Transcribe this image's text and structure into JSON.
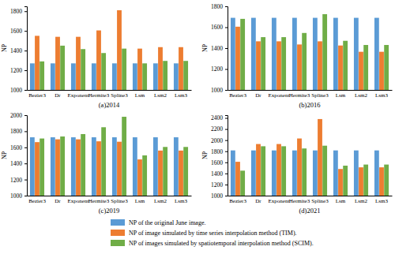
{
  "chart_data": [
    {
      "type": "bar",
      "title": "(a)2014",
      "y_label": "NP",
      "legend": "bottom",
      "grid": false,
      "categories": [
        "Bezier3",
        "Dr",
        "Exponent",
        "Hermite3",
        "Spline3",
        "Lsm",
        "Lsm2",
        "Lsm3"
      ],
      "series": [
        {
          "name": "NP of the original June image.",
          "color": "#5b9bd5",
          "values": [
            1270,
            1270,
            1270,
            1270,
            1270,
            1270,
            1270,
            1270
          ]
        },
        {
          "name": "NP of image simulated by time series interpolation method (TIM).",
          "color": "#ed7d31",
          "values": [
            1550,
            1540,
            1540,
            1605,
            1810,
            1420,
            1435,
            1435
          ]
        },
        {
          "name": "NP of images simulated by spatiotemporal interpolation method (SCIM).",
          "color": "#70ad47",
          "values": [
            1290,
            1450,
            1415,
            1375,
            1420,
            1270,
            1295,
            1295
          ]
        }
      ],
      "ylim": [
        1000,
        1850
      ],
      "yticks": [
        1000,
        1200,
        1400,
        1600,
        1800
      ]
    },
    {
      "type": "bar",
      "title": "(b)2016",
      "y_label": "NP",
      "grid": false,
      "categories": [
        "Bezier3",
        "Dr",
        "Exponent",
        "Hermite3",
        "Spline3",
        "Lsm",
        "Lsm2",
        "Lsm3"
      ],
      "series": [
        {
          "color": "#5b9bd5",
          "values": [
            1690,
            1690,
            1690,
            1690,
            1690,
            1690,
            1690,
            1690
          ]
        },
        {
          "color": "#ed7d31",
          "values": [
            1605,
            1465,
            1465,
            1435,
            1465,
            1425,
            1365,
            1365
          ]
        },
        {
          "color": "#70ad47",
          "values": [
            1680,
            1505,
            1505,
            1545,
            1725,
            1470,
            1430,
            1430
          ]
        }
      ],
      "ylim": [
        1000,
        1800
      ],
      "yticks": [
        1000,
        1200,
        1400,
        1600,
        1800
      ]
    },
    {
      "type": "bar",
      "title": "(c)2019",
      "y_label": "NP",
      "grid": false,
      "categories": [
        "Bezier3",
        "Dr",
        "Exponent",
        "Hermite3",
        "Spline3",
        "Lsm",
        "Lsm2",
        "Lsm3"
      ],
      "series": [
        {
          "color": "#5b9bd5",
          "values": [
            1725,
            1725,
            1725,
            1725,
            1725,
            1725,
            1725,
            1725
          ]
        },
        {
          "color": "#ed7d31",
          "values": [
            1665,
            1700,
            1700,
            1675,
            1670,
            1450,
            1560,
            1560
          ]
        },
        {
          "color": "#70ad47",
          "values": [
            1710,
            1735,
            1765,
            1850,
            1980,
            1500,
            1605,
            1605
          ]
        }
      ],
      "ylim": [
        1000,
        2000
      ],
      "yticks": [
        1000,
        1200,
        1400,
        1600,
        1800,
        2000
      ]
    },
    {
      "type": "bar",
      "title": "(d)2021",
      "y_label": "NP",
      "grid": false,
      "categories": [
        "Bezier3",
        "Dr",
        "Exponent",
        "Hermite3",
        "Spline3",
        "Lsm",
        "Lsm2",
        "Lsm3"
      ],
      "series": [
        {
          "color": "#5b9bd5",
          "values": [
            1815,
            1815,
            1815,
            1815,
            1815,
            1815,
            1815,
            1815
          ]
        },
        {
          "color": "#ed7d31",
          "values": [
            1610,
            1930,
            1930,
            2030,
            2380,
            1480,
            1510,
            1510
          ]
        },
        {
          "color": "#70ad47",
          "values": [
            1450,
            1890,
            1890,
            1850,
            1900,
            1540,
            1560,
            1560
          ]
        }
      ],
      "ylim": [
        1000,
        2450
      ],
      "yticks": [
        1000,
        1200,
        1400,
        1600,
        1800,
        2000,
        2200,
        2400
      ]
    }
  ]
}
